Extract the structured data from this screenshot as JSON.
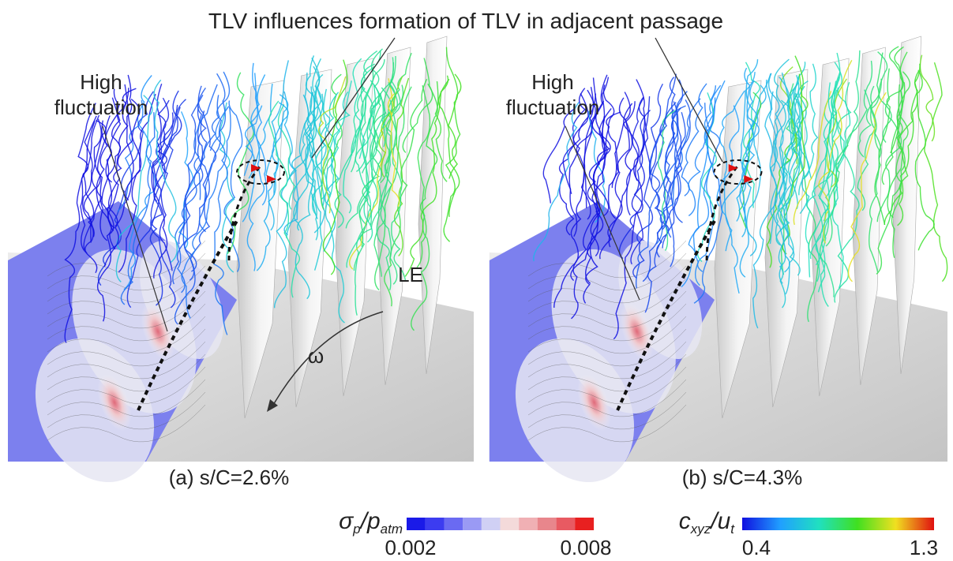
{
  "annotation": "TLV influences formation of TLV in adjacent passage",
  "panels": [
    {
      "label": "(a) s/C=2.6%",
      "callout": [
        "High",
        "fluctuation"
      ],
      "marker": "LE",
      "rotation": "ω"
    },
    {
      "label": "(b) s/C=4.3%",
      "callout": [
        "High",
        "fluctuation"
      ]
    }
  ],
  "colorbars": [
    {
      "num": "σ",
      "num_sub": "p",
      "den": "/p",
      "den_sub": "atm",
      "min": "0.002",
      "max": "0.008"
    },
    {
      "num": "c",
      "num_sub": "xyz",
      "den": "/u",
      "den_sub": "t",
      "min": "0.4",
      "max": "1.3"
    }
  ]
}
